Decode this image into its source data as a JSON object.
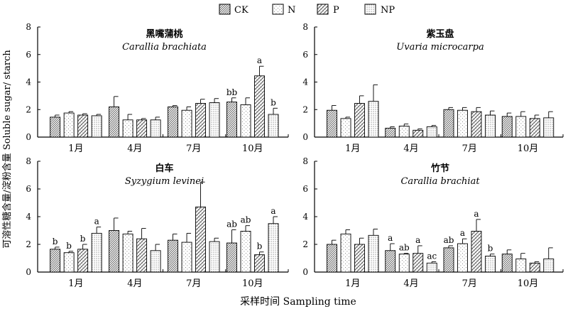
{
  "figure": {
    "ylabel": "可溶性糖含量/淀粉含量 Soluble sugar/ starch",
    "xlabel": "采样时间 Sampling time"
  },
  "legend": [
    {
      "name": "CK",
      "pattern": "diag-dense"
    },
    {
      "name": "N",
      "pattern": "sparse-dots"
    },
    {
      "name": "P",
      "pattern": "diag-wide"
    },
    {
      "name": "NP",
      "pattern": "dots"
    }
  ],
  "chart_data": [
    {
      "type": "bar",
      "title_cn": "黑嘴蒲桃",
      "title_latin": "Carallia brachiata",
      "categories": [
        "1月",
        "4月",
        "7月",
        "10月"
      ],
      "ylim": [
        0,
        8
      ],
      "yticks": [
        0,
        2,
        4,
        6,
        8
      ],
      "series": [
        {
          "name": "CK",
          "values": [
            1.45,
            2.2,
            2.2,
            2.55
          ],
          "errors": [
            0.15,
            0.75,
            0.1,
            0.3
          ],
          "labels": [
            "",
            "",
            "",
            "bb"
          ]
        },
        {
          "name": "N",
          "values": [
            1.75,
            1.25,
            1.95,
            2.35
          ],
          "errors": [
            0.1,
            0.4,
            0.25,
            0.5
          ],
          "labels": [
            "",
            "",
            "",
            ""
          ]
        },
        {
          "name": "P",
          "values": [
            1.6,
            1.25,
            2.45,
            4.45
          ],
          "errors": [
            0.1,
            0.1,
            0.3,
            0.7
          ],
          "labels": [
            "",
            "",
            "",
            "a"
          ]
        },
        {
          "name": "NP",
          "values": [
            1.55,
            1.25,
            2.5,
            1.65
          ],
          "errors": [
            0.1,
            0.2,
            0.3,
            0.45
          ],
          "labels": [
            "",
            "",
            "",
            "b"
          ]
        }
      ]
    },
    {
      "type": "bar",
      "title_cn": "紫玉盘",
      "title_latin": "Uvaria microcarpa",
      "categories": [
        "1月",
        "4月",
        "7月",
        "10月"
      ],
      "ylim": [
        0,
        8
      ],
      "yticks": [
        0,
        2,
        4,
        6,
        8
      ],
      "series": [
        {
          "name": "CK",
          "values": [
            1.95,
            0.65,
            2.0,
            1.5
          ],
          "errors": [
            0.35,
            0.1,
            0.15,
            0.25
          ],
          "labels": [
            "",
            "",
            "",
            ""
          ]
        },
        {
          "name": "N",
          "values": [
            1.35,
            0.8,
            1.95,
            1.5
          ],
          "errors": [
            0.1,
            0.15,
            0.2,
            0.35
          ],
          "labels": [
            "",
            "",
            "",
            ""
          ]
        },
        {
          "name": "P",
          "values": [
            2.45,
            0.5,
            1.85,
            1.35
          ],
          "errors": [
            0.55,
            0.1,
            0.3,
            0.25
          ],
          "labels": [
            "",
            "",
            "",
            ""
          ]
        },
        {
          "name": "NP",
          "values": [
            2.6,
            0.75,
            1.6,
            1.4
          ],
          "errors": [
            1.2,
            0.1,
            0.3,
            0.45
          ],
          "labels": [
            "",
            "",
            "",
            ""
          ]
        }
      ]
    },
    {
      "type": "bar",
      "title_cn": "白车",
      "title_latin": "Syzygium levinei",
      "categories": [
        "1月",
        "4月",
        "7月",
        "10月"
      ],
      "ylim": [
        0,
        8
      ],
      "yticks": [
        0,
        2,
        4,
        6,
        8
      ],
      "series": [
        {
          "name": "CK",
          "values": [
            1.65,
            3.0,
            2.3,
            2.1
          ],
          "errors": [
            0.15,
            0.9,
            0.45,
            0.95
          ],
          "labels": [
            "b",
            "",
            "",
            "ab"
          ]
        },
        {
          "name": "N",
          "values": [
            1.4,
            2.75,
            2.15,
            2.95
          ],
          "errors": [
            0.1,
            0.2,
            0.65,
            0.4
          ],
          "labels": [
            "b",
            "",
            "",
            "ab"
          ]
        },
        {
          "name": "P",
          "values": [
            1.65,
            2.4,
            4.7,
            1.25
          ],
          "errors": [
            0.35,
            0.75,
            1.8,
            0.2
          ],
          "labels": [
            "b",
            "",
            "",
            "b"
          ]
        },
        {
          "name": "NP",
          "values": [
            2.8,
            1.55,
            2.2,
            3.5
          ],
          "errors": [
            0.45,
            0.45,
            0.25,
            0.5
          ],
          "labels": [
            "a",
            "",
            "",
            "a"
          ]
        }
      ]
    },
    {
      "type": "bar",
      "title_cn": "竹节",
      "title_latin": "Carallia brachiat",
      "categories": [
        "1月",
        "4月",
        "7月",
        "10月"
      ],
      "ylim": [
        0,
        8
      ],
      "yticks": [
        0,
        2,
        4,
        6,
        8
      ],
      "series": [
        {
          "name": "CK",
          "values": [
            2.0,
            1.55,
            1.75,
            1.3
          ],
          "errors": [
            0.3,
            0.5,
            0.15,
            0.3
          ],
          "labels": [
            "",
            "a",
            "ab",
            ""
          ]
        },
        {
          "name": "N",
          "values": [
            2.75,
            1.3,
            2.05,
            0.95
          ],
          "errors": [
            0.3,
            0.05,
            0.35,
            0.4
          ],
          "labels": [
            "",
            "ab",
            "a",
            ""
          ]
        },
        {
          "name": "P",
          "values": [
            2.0,
            1.35,
            2.95,
            0.65
          ],
          "errors": [
            0.45,
            0.55,
            0.85,
            0.1
          ],
          "labels": [
            "",
            "a",
            "a",
            ""
          ]
        },
        {
          "name": "NP",
          "values": [
            2.65,
            0.65,
            1.15,
            0.95
          ],
          "errors": [
            0.45,
            0.1,
            0.15,
            0.8
          ],
          "labels": [
            "",
            "ac",
            "b",
            ""
          ]
        }
      ]
    }
  ]
}
